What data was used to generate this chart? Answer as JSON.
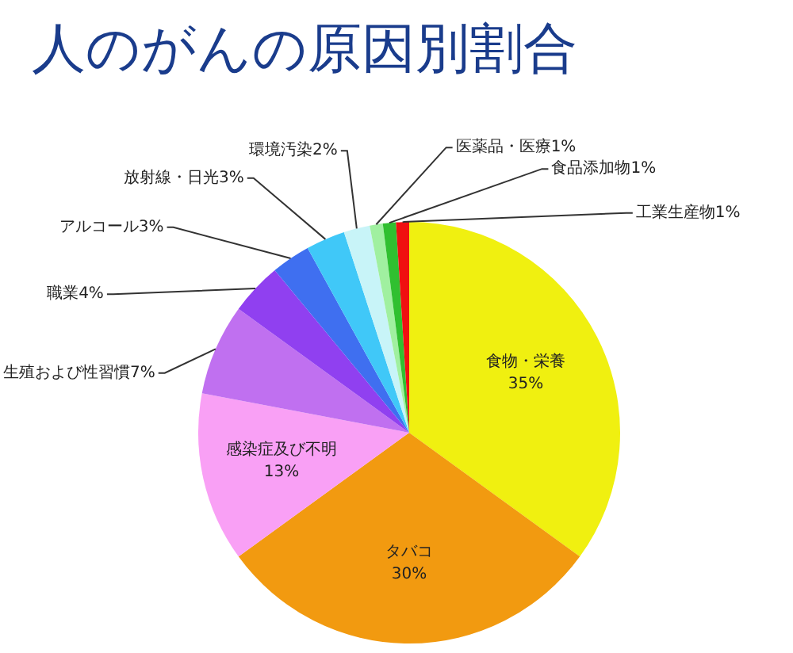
{
  "chart_data": {
    "type": "pie",
    "title": "人のがんの原因別割合",
    "categories": [
      "食物・栄養",
      "タバコ",
      "感染症及び不明",
      "生殖および性習慣",
      "職業",
      "アルコール",
      "放射線・日光",
      "環境汚染",
      "医薬品・医療",
      "食品添加物",
      "工業生産物"
    ],
    "values": [
      35,
      30,
      13,
      7,
      4,
      3,
      3,
      2,
      1,
      1,
      1
    ],
    "value_labels": [
      "35%",
      "30%",
      "13%",
      "7%",
      "4%",
      "3%",
      "3%",
      "2%",
      "1%",
      "1%",
      "1%"
    ],
    "colors": [
      "#f0f010",
      "#f29a10",
      "#f9a0f5",
      "#c070f0",
      "#9040f0",
      "#3f6ff0",
      "#40c8f8",
      "#c8f4f8",
      "#a0f0a0",
      "#30c030",
      "#f01010"
    ]
  }
}
